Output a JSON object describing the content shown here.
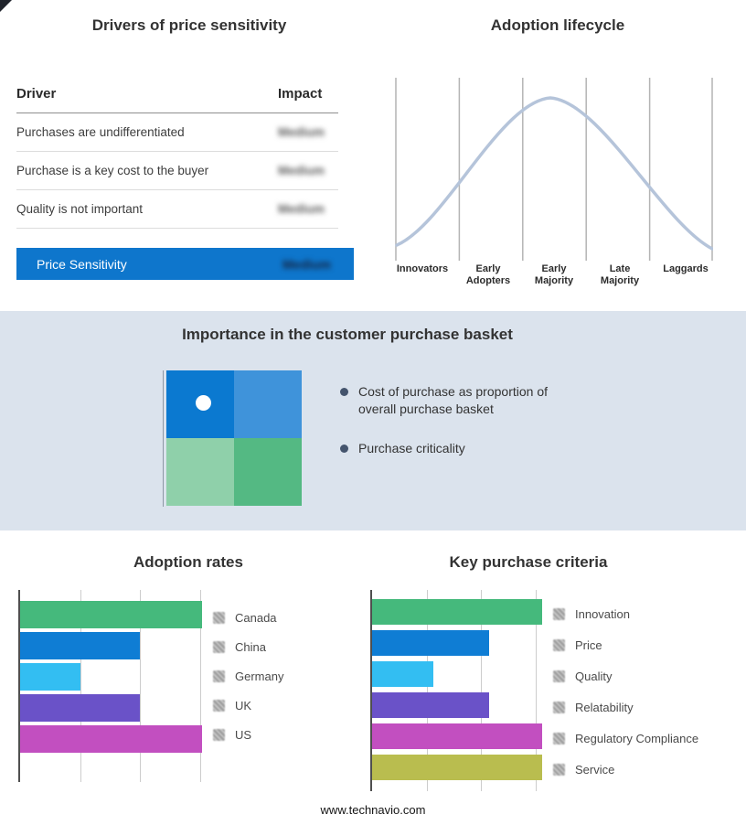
{
  "drivers_panel": {
    "title": "Drivers of price sensitivity",
    "col_driver": "Driver",
    "col_impact": "Impact",
    "rows": [
      {
        "driver": "Purchases are undifferentiated",
        "impact": "Medium"
      },
      {
        "driver": "Purchase is a key cost to the buyer",
        "impact": "Medium"
      },
      {
        "driver": "Quality is not important",
        "impact": "Medium"
      }
    ],
    "summary": {
      "label": "Price Sensitivity",
      "impact": "Medium"
    },
    "accent_color": "#0e76cc"
  },
  "lifecycle": {
    "title": "Adoption lifecycle",
    "categories": [
      "Innovators",
      "Early Adopters",
      "Early Majority",
      "Late Majority",
      "Laggards"
    ],
    "curve_color": "#b5c4da"
  },
  "basket": {
    "title": "Importance in the customer purchase basket",
    "bullets": [
      "Cost of purchase as proportion of overall purchase basket",
      "Purchase criticality"
    ],
    "band_bg": "#dbe3ed",
    "quadrant": {
      "tl": "#0b79d0",
      "tr": "#3f93da",
      "bl": "#8fd0aa",
      "br": "#54b983"
    }
  },
  "adoption_rates": {
    "title": "Adoption rates",
    "items": [
      {
        "label": "Canada",
        "value": 100,
        "color": "#45b97c"
      },
      {
        "label": "China",
        "value": 66,
        "color": "#0f7dd4"
      },
      {
        "label": "Germany",
        "value": 33,
        "color": "#33bef2"
      },
      {
        "label": "UK",
        "value": 66,
        "color": "#6a52c8"
      },
      {
        "label": "US",
        "value": 100,
        "color": "#c24fc0"
      }
    ]
  },
  "criteria": {
    "title": "Key purchase criteria",
    "items": [
      {
        "label": "Innovation",
        "value": 100,
        "color": "#45b97c"
      },
      {
        "label": "Price",
        "value": 69,
        "color": "#0f7dd4"
      },
      {
        "label": "Quality",
        "value": 36,
        "color": "#33bef2"
      },
      {
        "label": "Relatability",
        "value": 69,
        "color": "#6a52c8"
      },
      {
        "label": "Regulatory Compliance",
        "value": 100,
        "color": "#c24fc0"
      },
      {
        "label": "Service",
        "value": 100,
        "color": "#b9bd4f"
      }
    ]
  },
  "footer": {
    "site": "www.technavio.com"
  },
  "chart_data": [
    {
      "type": "line",
      "title": "Adoption lifecycle",
      "x": [
        "Innovators",
        "Early Adopters",
        "Early Majority",
        "Late Majority",
        "Laggards"
      ],
      "y_normalized": [
        0.08,
        0.55,
        1.0,
        0.55,
        0.08
      ],
      "shape": "bell curve peaking at Early Majority",
      "xlabel": "",
      "ylabel": "",
      "grid": "vertical segment lines only",
      "legend": "none"
    },
    {
      "type": "bar",
      "orientation": "horizontal",
      "title": "Adoption rates",
      "categories": [
        "Canada",
        "China",
        "Germany",
        "UK",
        "US"
      ],
      "values": [
        100,
        66,
        33,
        66,
        100
      ],
      "value_scale": "percent of longest bar (axis unlabeled)",
      "colors": [
        "#45b97c",
        "#0f7dd4",
        "#33bef2",
        "#6a52c8",
        "#c24fc0"
      ],
      "legend_position": "right"
    },
    {
      "type": "bar",
      "orientation": "horizontal",
      "title": "Key purchase criteria",
      "categories": [
        "Innovation",
        "Price",
        "Quality",
        "Relatability",
        "Regulatory Compliance",
        "Service"
      ],
      "values": [
        100,
        69,
        36,
        69,
        100,
        100
      ],
      "value_scale": "percent of longest bar (axis unlabeled)",
      "colors": [
        "#45b97c",
        "#0f7dd4",
        "#33bef2",
        "#6a52c8",
        "#c24fc0",
        "#b9bd4f"
      ],
      "legend_position": "right"
    }
  ]
}
